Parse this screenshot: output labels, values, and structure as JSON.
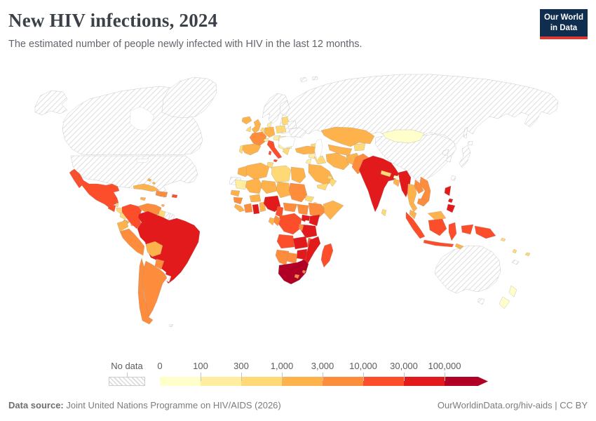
{
  "header": {
    "title": "New HIV infections, 2024",
    "subtitle": "The estimated number of people newly infected with HIV in the last 12 months.",
    "logo": {
      "line1": "Our World",
      "line2": "in Data",
      "bg_color": "#0f2d4e",
      "accent_color": "#d73a34"
    }
  },
  "legend": {
    "no_data_label": "No data",
    "tick_labels": [
      "0",
      "100",
      "300",
      "1,000",
      "3,000",
      "10,000",
      "30,000",
      "100,000"
    ],
    "bin_ids": [
      "0-100",
      "100-300",
      "300-1,000",
      "1,000-3,000",
      "3,000-10,000",
      "10,000-30,000",
      "30,000-100,000",
      "100,000+"
    ],
    "colors": [
      "#ffffcc",
      "#ffeda0",
      "#fed976",
      "#feb24c",
      "#fd8d3c",
      "#fc4e2a",
      "#e31a1c",
      "#b10026"
    ],
    "no_data_pattern": "diagonal-hatch"
  },
  "footer": {
    "source_label": "Data source:",
    "source_text": "Joint United Nations Programme on HIV/AIDS (2026)",
    "credit_text": "OurWorldinData.org/hiv-aids | CC BY"
  },
  "chart_data": {
    "type": "choropleth",
    "title": "New HIV infections, 2024",
    "year": "2024",
    "metric": "Estimated number of people newly infected with HIV in the last 12 months",
    "scale_type": "log bins",
    "bins": [
      "0-100",
      "100-300",
      "300-1,000",
      "1,000-3,000",
      "3,000-10,000",
      "10,000-30,000",
      "30,000-100,000",
      "100,000+",
      "no-data"
    ],
    "regions": {
      "canada": "no-data",
      "alaska": "no-data",
      "usa": "no-data",
      "greenland": "no-data",
      "mexico": "10,000-30,000",
      "guatemala": "10,000-30,000",
      "belize": "300-1,000",
      "honduras": "300-1,000",
      "nicaragua": "300-1,000",
      "costa-rica": "1,000-3,000",
      "panama": "1,000-3,000",
      "cuba": "1,000-3,000",
      "jamaica": "1,000-3,000",
      "haiti": "3,000-10,000",
      "dominican-republic": "3,000-10,000",
      "puerto-rico": "10,000-30,000",
      "bahamas": "1,000-3,000",
      "trinidad": "1,000-3,000",
      "colombia": "10,000-30,000",
      "venezuela": "3,000-10,000",
      "guyana": "300-1,000",
      "suriname": "no-data",
      "french-guiana": "no-data",
      "ecuador": "1,000-3,000",
      "peru": "3,000-10,000",
      "brazil": "30,000-100,000",
      "bolivia": "1,000-3,000",
      "paraguay": "3,000-10,000",
      "uruguay": "no-data",
      "argentina": "3,000-10,000",
      "chile": "3,000-10,000",
      "falkland-islands": "no-data",
      "iceland": "1,000-3,000",
      "uk": "1,000-3,000",
      "ireland": "300-1,000",
      "scandinavia": "no-data",
      "finland": "no-data",
      "denmark": "100-300",
      "germany": "1,000-3,000",
      "benelux": "300-1,000",
      "france": "3,000-10,000",
      "spain": "1,000-3,000",
      "portugal": "300-1,000",
      "italy": "10,000-30,000",
      "switzerland": "100-300",
      "czech-austria": "100-300",
      "poland": "300-1,000",
      "baltics": "300-1,000",
      "belarus": "no-data",
      "ukraine": "no-data",
      "hungary-slovakia": "100-300",
      "romania": "1,000-3,000",
      "balkans": "100-300",
      "bulgaria": "100-300",
      "greece": "300-1,000",
      "russia": "no-data",
      "svalbard": "no-data",
      "kazakhstan": "1,000-3,000",
      "central-asia": "1,000-3,000",
      "kyrgyz-tajik": "300-1,000",
      "caucasus": "300-1,000",
      "turkey": "1,000-3,000",
      "syria": "100-300",
      "iraq": "300-1,000",
      "iran": "1,000-3,000",
      "afghanistan": "1,000-3,000",
      "pakistan": "3,000-10,000",
      "saudi-arabia": "1,000-3,000",
      "yemen": "300-1,000",
      "oman": "300-1,000",
      "uae-qatar": "300-1,000",
      "jordan-israel": "100-300",
      "mongolia": "0-100",
      "china": "no-data",
      "taiwan": "no-data",
      "north-korea": "no-data",
      "south-korea": "no-data",
      "japan": "no-data",
      "sakhalin": "no-data",
      "india": "30,000-100,000",
      "nepal": "300-1,000",
      "bhutan": "0-100",
      "bangladesh": "1,000-3,000",
      "sri-lanka": "300-1,000",
      "myanmar": "30,000-100,000",
      "thailand": "1,000-3,000",
      "laos": "3,000-10,000",
      "vietnam": "3,000-10,000",
      "cambodia": "3,000-10,000",
      "malaysia": "1,000-3,000",
      "malaysia-borneo": "1,000-3,000",
      "indonesia-sumatra": "10,000-30,000",
      "indonesia-kalimantan": "10,000-30,000",
      "indonesia-java": "10,000-30,000",
      "indonesia-sulawesi": "10,000-30,000",
      "indonesia-papua": "10,000-30,000",
      "timor": "1,000-3,000",
      "philippines": "30,000-100,000",
      "papua-new-guinea": "10,000-30,000",
      "solomon-islands": "300-1,000",
      "vanuatu": "300-1,000",
      "fiji": "300-1,000",
      "new-caledonia": "no-data",
      "australia": "no-data",
      "new-zealand": "0-100",
      "morocco": "1,000-3,000",
      "western-sahara": "no-data",
      "algeria": "1,000-3,000",
      "tunisia": "300-1,000",
      "libya": "300-1,000",
      "egypt": "1,000-3,000",
      "mauritania": "100-300",
      "mali": "1,000-3,000",
      "niger": "1,000-3,000",
      "chad": "1,000-3,000",
      "sudan": "3,000-10,000",
      "eritrea": "300-1,000",
      "djibouti": "300-1,000",
      "senegal": "1,000-3,000",
      "guinea": "3,000-10,000",
      "sierra-leone-liberia": "1,000-3,000",
      "cote-divoire": "3,000-10,000",
      "ghana": "30,000-100,000",
      "togo-benin": "1,000-3,000",
      "burkina-faso": "1,000-3,000",
      "nigeria": "30,000-100,000",
      "cameroon": "10,000-30,000",
      "central-african-republic": "3,000-10,000",
      "south-sudan": "3,000-10,000",
      "ethiopia": "3,000-10,000",
      "somalia": "1,000-3,000",
      "kenya": "30,000-100,000",
      "uganda": "30,000-100,000",
      "drc": "10,000-30,000",
      "congo": "3,000-10,000",
      "gabon": "1,000-3,000",
      "tanzania": "30,000-100,000",
      "rwanda-burundi": "3,000-10,000",
      "angola": "10,000-30,000",
      "zambia": "30,000-100,000",
      "malawi": "10,000-30,000",
      "mozambique": "30,000-100,000",
      "zimbabwe": "30,000-100,000",
      "botswana": "3,000-10,000",
      "namibia": "3,000-10,000",
      "south-africa": "100,000+",
      "lesotho": "3,000-10,000",
      "eswatini": "3,000-10,000",
      "madagascar": "10,000-30,000"
    }
  }
}
